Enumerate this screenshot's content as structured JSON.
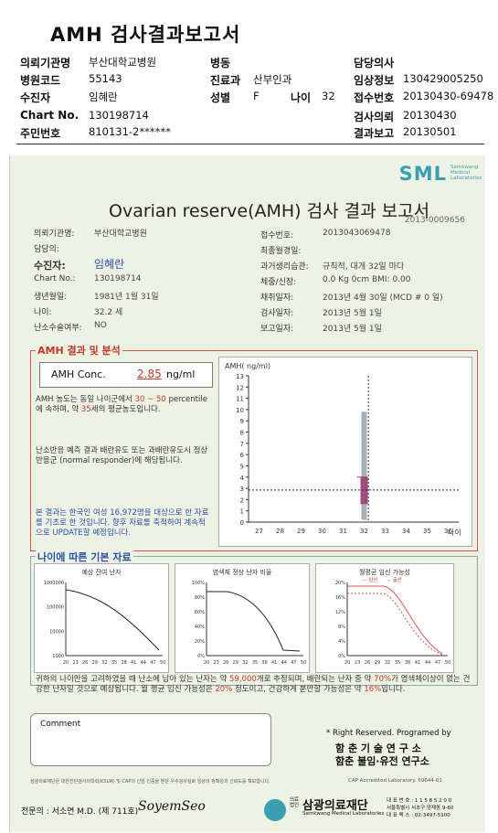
{
  "header": {
    "title": "AMH 검사결과보고서",
    "rows": [
      {
        "l1": "의뢰기관명",
        "v1": "부산대학교병원",
        "l2": "병동",
        "v2": "",
        "l3": "담당의사",
        "v3": ""
      },
      {
        "l1": "병원코드",
        "v1": "55143",
        "l2": "진료과",
        "v2": "산부인과",
        "l3": "임상정보",
        "v3": "130429005250"
      },
      {
        "l1": "수진자",
        "v1": "임혜란",
        "l2": "성별",
        "v2": "F",
        "l2b": "나이",
        "v2b": "32",
        "l3": "접수번호",
        "v3": "20130430-69478"
      },
      {
        "l1": "Chart No.",
        "v1": "130198714",
        "l2": "",
        "v2": "",
        "l3": "검사의뢰",
        "v3": "20130430"
      },
      {
        "l1": "주민번호",
        "v1": "810131-2******",
        "l2": "",
        "v2": "",
        "l3": "결과보고",
        "v3": "20130501"
      }
    ]
  },
  "report": {
    "brand": "SML",
    "brand_sub": "Samkwang Medical Laboratories",
    "title": "Ovarian reserve(AMH) 검사 결과 보고서",
    "serial": "2013-0009656",
    "left_fields": [
      {
        "label": "의뢰기관명:",
        "value": "부산대학교병원"
      },
      {
        "label": "담당의:",
        "value": ""
      },
      {
        "label": "수진자:",
        "value": "임혜란"
      },
      {
        "label": "Chart No.:",
        "value": "130198714"
      },
      {
        "label": "생년월일:",
        "value": "1981년 1월 31일"
      },
      {
        "label": "나이:",
        "value": "32.2 세"
      },
      {
        "label": "난소수술여부:",
        "value": "NO"
      }
    ],
    "right_fields": [
      {
        "label": "접수번호:",
        "value": "2013043069478"
      },
      {
        "label": "최종월경일:",
        "value": ""
      },
      {
        "label": "과거생리습관:",
        "value": "규칙적, 대개  32일 마다"
      },
      {
        "label": "체중/신장:",
        "value": "0.0 Kg      0cm    BMI:  0.00"
      },
      {
        "label": "채취일자:",
        "value": "2013년 4월 30일   (MCD # 0 일)"
      },
      {
        "label": "검사일자:",
        "value": "2013년 5월 1일"
      },
      {
        "label": "보고일자:",
        "value": "2013년 5월 1일"
      }
    ],
    "amh_section": "AMH 결과 및 분석",
    "amh_label": "AMH Conc.",
    "amh_value": "2.85",
    "amh_unit": "ng/ml",
    "interp1_a": "AMH 농도는 동일 나이군에서",
    "interp1_range": "30 ~ 50",
    "interp1_b": "percentile에 속하며, 약",
    "interp1_age": "35",
    "interp1_c": "세의 평균농도입니다.",
    "interp2": "난소반응 예측 결과 배란유도 또는 과배란유도시 정상반응군 (normal responder)에 해당됩니다.",
    "note": "본 결과는 한국인 여성 16,972명을 대상으로 한 자료를 기초로 한 것입니다. 향후 자료를 축적하여 계속적으로 UPDATE할 예정입니다.",
    "age_section": "나이에 따른 기본 자료",
    "mini1_title": "예상 잔여 난자",
    "mini2_title": "염색체 정상 난자 비율",
    "mini3_title": "월평균 임신 가능성",
    "mini3_legend_a": "— 임신",
    "mini3_legend_b": "-- 출산",
    "bottom_a": "귀하의 나이만을 고려하였을 때 난소에 남아 있는 난자는 약",
    "bottom_eggs": "59,000",
    "bottom_b": "개로 추정되며, 배란되는 난자 중 약",
    "bottom_pct1": "70%",
    "bottom_c": "가 염색체이상이 없는 건강한 난자일 것으로 예상됩니다. 월 평균 임신 가능성은",
    "bottom_pct2": "20%",
    "bottom_d": "정도이고, 건강하게 분만할 가능성은 약",
    "bottom_pct3": "16%",
    "bottom_e": "입니다.",
    "comment_label": "Comment",
    "rights": "* Right Reserved. Programed by",
    "inst1": "함 춘  기 술  연 구 소",
    "inst2": "함춘 불임·유전 연구소",
    "fine_print": "삼광의료재단은 대한진단검사의학회(KSLM) 및 CAP의 신임 인증을 받은 우수검사실로 임상의 정확성과 신뢰도를 확보합니다.",
    "cap": "CAP Accredited Laboratory. 69644-01",
    "doctor": "전문의 : 서소연 M.D. (제 711호)",
    "signature": "SoyemSeo",
    "foundation_small": "의료법인",
    "foundation": "삼광의료재단",
    "foundation_en": "Samkwang Medical Laboratories",
    "tel": "대 표 번 호 : 1 1 5 8 5 2 0 0",
    "addr": "서울특별시 서초구 양재동 9-60",
    "fax": "대 표 팩 스 : 02-3497-5100"
  },
  "chart_data": [
    {
      "type": "box",
      "title": "",
      "ylabel": "AMH( ng/ml)",
      "xlabel": "나이",
      "ylim": [
        0,
        13
      ],
      "yticks": [
        0,
        1,
        2,
        3,
        4,
        5,
        6,
        7,
        8,
        9,
        10,
        11,
        12,
        13
      ],
      "xticks": [
        "27",
        "28",
        "29",
        "30",
        "31",
        "32",
        "33",
        "34",
        "35",
        "36"
      ],
      "patient_age": 32.2,
      "patient_amh": 2.85,
      "whisker": [
        0.2,
        9.8
      ],
      "box": [
        1.6,
        4.0
      ],
      "median": 2.9
    },
    {
      "type": "line",
      "title": "예상 잔여 난자",
      "yticks": [
        "1000000",
        "100000",
        "10000",
        "1000"
      ],
      "xticks": [
        "20",
        "23",
        "26",
        "29",
        "32",
        "35",
        "38",
        "41",
        "44",
        "47",
        "50"
      ]
    },
    {
      "type": "line",
      "title": "염색체 정상 난자 비율",
      "yticks": [
        "100%",
        "80%",
        "60%",
        "40%",
        "20%",
        "0%"
      ],
      "xticks": [
        "20",
        "23",
        "26",
        "29",
        "32",
        "35",
        "38",
        "41",
        "44",
        "47",
        "50"
      ]
    },
    {
      "type": "line",
      "title": "월평균 임신 가능성",
      "yticks": [
        "20%",
        "16%",
        "12%",
        "8%",
        "4%",
        "0%"
      ],
      "xticks": [
        "20",
        "23",
        "26",
        "29",
        "32",
        "35",
        "38",
        "41",
        "44",
        "47",
        "50"
      ]
    }
  ]
}
